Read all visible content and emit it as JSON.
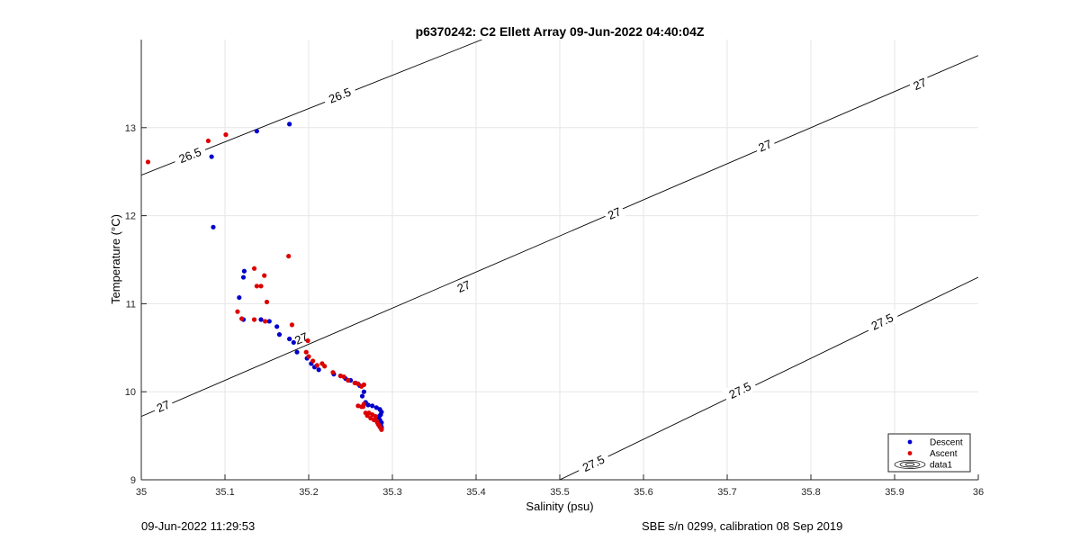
{
  "chart_data": {
    "type": "scatter",
    "title": "p6370242: C2 Ellett Array 09-Jun-2022 04:40:04Z",
    "xlabel": "Salinity (psu)",
    "ylabel": "Temperature (°C)",
    "xlim": [
      35,
      36
    ],
    "ylim": [
      9,
      14
    ],
    "x_ticks": [
      35,
      35.1,
      35.2,
      35.3,
      35.4,
      35.5,
      35.6,
      35.7,
      35.8,
      35.9,
      36
    ],
    "x_tick_labels": [
      "35",
      "35.1",
      "35.2",
      "35.3",
      "35.4",
      "35.5",
      "35.6",
      "35.7",
      "35.8",
      "35.9",
      "36"
    ],
    "y_ticks": [
      9,
      10,
      11,
      12,
      13
    ],
    "y_tick_labels": [
      "9",
      "10",
      "11",
      "12",
      "13"
    ],
    "grid": true,
    "legend_position": "bottom-right",
    "series": [
      {
        "name": "Descent",
        "color": "#0000cc",
        "points": [
          [
            35.177,
            13.04
          ],
          [
            35.138,
            12.96
          ],
          [
            35.084,
            12.67
          ],
          [
            35.086,
            11.87
          ],
          [
            35.123,
            11.37
          ],
          [
            35.122,
            11.3
          ],
          [
            35.117,
            11.07
          ],
          [
            35.122,
            10.82
          ],
          [
            35.143,
            10.82
          ],
          [
            35.153,
            10.8
          ],
          [
            35.162,
            10.74
          ],
          [
            35.165,
            10.65
          ],
          [
            35.177,
            10.6
          ],
          [
            35.182,
            10.56
          ],
          [
            35.186,
            10.45
          ],
          [
            35.198,
            10.38
          ],
          [
            35.203,
            10.32
          ],
          [
            35.207,
            10.28
          ],
          [
            35.212,
            10.25
          ],
          [
            35.23,
            10.2
          ],
          [
            35.238,
            10.18
          ],
          [
            35.244,
            10.15
          ],
          [
            35.25,
            10.13
          ],
          [
            35.256,
            10.1
          ],
          [
            35.261,
            10.07
          ],
          [
            35.266,
            10.0
          ],
          [
            35.264,
            9.95
          ],
          [
            35.268,
            9.88
          ],
          [
            35.271,
            9.85
          ],
          [
            35.276,
            9.84
          ],
          [
            35.281,
            9.82
          ],
          [
            35.285,
            9.8
          ],
          [
            35.287,
            9.77
          ],
          [
            35.286,
            9.74
          ],
          [
            35.284,
            9.72
          ],
          [
            35.283,
            9.7
          ],
          [
            35.285,
            9.68
          ],
          [
            35.287,
            9.65
          ],
          [
            35.286,
            9.63
          ],
          [
            35.287,
            9.6
          ],
          [
            35.287,
            9.58
          ]
        ]
      },
      {
        "name": "Ascent",
        "color": "#dd0000",
        "points": [
          [
            35.008,
            12.61
          ],
          [
            35.08,
            12.85
          ],
          [
            35.101,
            12.92
          ],
          [
            35.176,
            11.54
          ],
          [
            35.135,
            11.4
          ],
          [
            35.138,
            11.2
          ],
          [
            35.143,
            11.2
          ],
          [
            35.147,
            11.32
          ],
          [
            35.15,
            11.02
          ],
          [
            35.115,
            10.91
          ],
          [
            35.12,
            10.83
          ],
          [
            35.135,
            10.82
          ],
          [
            35.148,
            10.8
          ],
          [
            35.18,
            10.76
          ],
          [
            35.199,
            10.58
          ],
          [
            35.197,
            10.45
          ],
          [
            35.2,
            10.4
          ],
          [
            35.205,
            10.35
          ],
          [
            35.21,
            10.3
          ],
          [
            35.216,
            10.32
          ],
          [
            35.219,
            10.29
          ],
          [
            35.229,
            10.22
          ],
          [
            35.238,
            10.18
          ],
          [
            35.242,
            10.17
          ],
          [
            35.247,
            10.13
          ],
          [
            35.255,
            10.1
          ],
          [
            35.259,
            10.09
          ],
          [
            35.263,
            10.06
          ],
          [
            35.266,
            10.08
          ],
          [
            35.259,
            9.84
          ],
          [
            35.263,
            9.83
          ],
          [
            35.266,
            9.86
          ],
          [
            35.265,
            9.83
          ],
          [
            35.268,
            9.76
          ],
          [
            35.27,
            9.73
          ],
          [
            35.272,
            9.76
          ],
          [
            35.274,
            9.7
          ],
          [
            35.276,
            9.74
          ],
          [
            35.278,
            9.68
          ],
          [
            35.28,
            9.72
          ],
          [
            35.281,
            9.67
          ],
          [
            35.282,
            9.65
          ],
          [
            35.283,
            9.63
          ],
          [
            35.284,
            9.62
          ],
          [
            35.285,
            9.6
          ],
          [
            35.286,
            9.59
          ],
          [
            35.287,
            9.57
          ]
        ]
      }
    ],
    "density_contours": [
      {
        "label": "26.5",
        "line": [
          [
            35.0,
            12.46
          ],
          [
            35.407,
            14.0
          ]
        ],
        "label_positions": [
          [
            35.058,
            12.69
          ],
          [
            35.237,
            13.37
          ]
        ]
      },
      {
        "label": "27",
        "line": [
          [
            35.0,
            9.72
          ],
          [
            36.0,
            13.82
          ]
        ],
        "label_positions": [
          [
            35.026,
            9.84
          ],
          [
            35.191,
            10.61
          ],
          [
            35.385,
            11.2
          ],
          [
            35.565,
            12.03
          ],
          [
            35.745,
            12.8
          ],
          [
            35.93,
            13.5
          ]
        ]
      },
      {
        "label": "27.5",
        "line": [
          [
            35.5,
            9.0
          ],
          [
            36.0,
            11.3
          ]
        ],
        "label_positions": [
          [
            35.54,
            9.19
          ],
          [
            35.715,
            10.02
          ],
          [
            35.885,
            10.8
          ]
        ]
      }
    ],
    "legend": {
      "entries": [
        "Descent",
        "Ascent",
        "data1"
      ]
    }
  },
  "footer": {
    "left": "09-Jun-2022 11:29:53",
    "right": "SBE s/n 0299, calibration 08 Sep 2019"
  }
}
